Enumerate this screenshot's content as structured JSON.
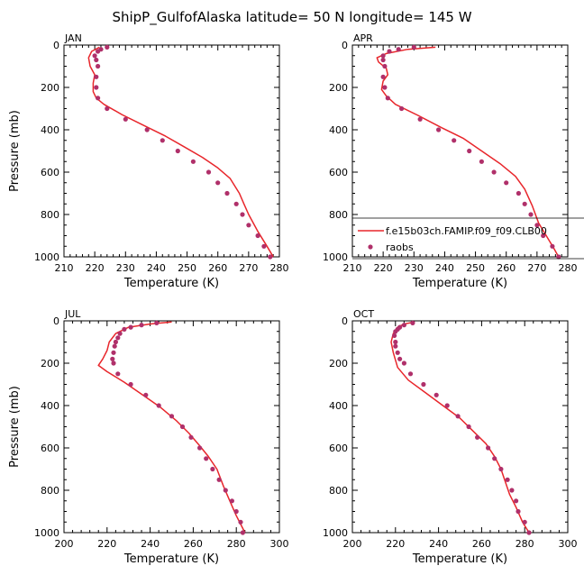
{
  "figure": {
    "title": "ShipP_GulfofAlaska  latitude= 50 N longitude= 145 W"
  },
  "legend": {
    "model_label": "f.e15b03ch.FAMIP.f09_f09.CLB00",
    "obs_label": "raobs",
    "placement": "inside APR panel, lower right"
  },
  "colors": {
    "model_line": "#e8262b",
    "obs_marker": "#b0306a"
  },
  "chart_data": [
    {
      "type": "line",
      "title": "JAN",
      "xlabel": "Temperature (K)",
      "ylabel": "Pressure (mb)",
      "xlim": [
        210,
        280
      ],
      "xticks": [
        "210",
        "220",
        "230",
        "240",
        "250",
        "260",
        "270",
        "280"
      ],
      "ylim": [
        1000,
        0
      ],
      "yticks": [
        "0",
        "200",
        "400",
        "600",
        "800",
        "1000"
      ],
      "grid": false,
      "series": [
        {
          "name": "f.e15b03ch.FAMIP.f09_f09.CLB00",
          "kind": "line",
          "points": [
            [
              221.5,
              10
            ],
            [
              219,
              30
            ],
            [
              218,
              60
            ],
            [
              218.5,
              100
            ],
            [
              220,
              140
            ],
            [
              219.5,
              180
            ],
            [
              219.5,
              220
            ],
            [
              220.5,
              250
            ],
            [
              223,
              280
            ],
            [
              229,
              330
            ],
            [
              236,
              380
            ],
            [
              243,
              430
            ],
            [
              249,
              480
            ],
            [
              255,
              530
            ],
            [
              260,
              580
            ],
            [
              264,
              630
            ],
            [
              267,
              700
            ],
            [
              268.5,
              750
            ],
            [
              270,
              800
            ],
            [
              273,
              880
            ],
            [
              276,
              950
            ],
            [
              278,
              1000
            ]
          ]
        },
        {
          "name": "raobs",
          "kind": "scatter",
          "points": [
            [
              224,
              10
            ],
            [
              222,
              20
            ],
            [
              221,
              30
            ],
            [
              220,
              50
            ],
            [
              220.5,
              70
            ],
            [
              221,
              100
            ],
            [
              220.5,
              150
            ],
            [
              220.5,
              200
            ],
            [
              221,
              250
            ],
            [
              224,
              300
            ],
            [
              230,
              350
            ],
            [
              237,
              400
            ],
            [
              242,
              450
            ],
            [
              247,
              500
            ],
            [
              252,
              550
            ],
            [
              257,
              600
            ],
            [
              260,
              650
            ],
            [
              263,
              700
            ],
            [
              266,
              750
            ],
            [
              268,
              800
            ],
            [
              270,
              850
            ],
            [
              273,
              900
            ],
            [
              275,
              950
            ],
            [
              277,
              1000
            ]
          ]
        }
      ]
    },
    {
      "type": "line",
      "title": "APR",
      "xlabel": "Temperature (K)",
      "ylabel": "Pressure (mb)",
      "xlim": [
        210,
        280
      ],
      "xticks": [
        "210",
        "220",
        "230",
        "240",
        "250",
        "260",
        "270",
        "280"
      ],
      "ylim": [
        1000,
        0
      ],
      "yticks": [
        "0",
        "200",
        "400",
        "600",
        "800",
        "1000"
      ],
      "grid": false,
      "series": [
        {
          "name": "f.e15b03ch.FAMIP.f09_f09.CLB00",
          "kind": "line",
          "points": [
            [
              237,
              10
            ],
            [
              228,
              20
            ],
            [
              221,
              40
            ],
            [
              218,
              60
            ],
            [
              218.5,
              80
            ],
            [
              221,
              110
            ],
            [
              221.5,
              140
            ],
            [
              220,
              170
            ],
            [
              219.5,
              210
            ],
            [
              221,
              240
            ],
            [
              224,
              280
            ],
            [
              231,
              330
            ],
            [
              239,
              390
            ],
            [
              246,
              440
            ],
            [
              252,
              500
            ],
            [
              258,
              560
            ],
            [
              263,
              620
            ],
            [
              266,
              680
            ],
            [
              268.5,
              760
            ],
            [
              270.5,
              840
            ],
            [
              273,
              900
            ],
            [
              275.5,
              960
            ],
            [
              277,
              1000
            ]
          ]
        },
        {
          "name": "raobs",
          "kind": "scatter",
          "points": [
            [
              230,
              10
            ],
            [
              225,
              20
            ],
            [
              222,
              30
            ],
            [
              220,
              50
            ],
            [
              220,
              70
            ],
            [
              220.5,
              100
            ],
            [
              220,
              150
            ],
            [
              220.5,
              200
            ],
            [
              221.5,
              250
            ],
            [
              226,
              300
            ],
            [
              232,
              350
            ],
            [
              238,
              400
            ],
            [
              243,
              450
            ],
            [
              248,
              500
            ],
            [
              252,
              550
            ],
            [
              256,
              600
            ],
            [
              260,
              650
            ],
            [
              264,
              700
            ],
            [
              266,
              750
            ],
            [
              268,
              800
            ],
            [
              270,
              850
            ],
            [
              272,
              900
            ],
            [
              275,
              950
            ],
            [
              277,
              1000
            ]
          ]
        }
      ]
    },
    {
      "type": "line",
      "title": "JUL",
      "xlabel": "Temperature (K)",
      "ylabel": "Pressure (mb)",
      "xlim": [
        200,
        300
      ],
      "xticks": [
        "200",
        "220",
        "240",
        "260",
        "280",
        "300"
      ],
      "ylim": [
        1000,
        0
      ],
      "yticks": [
        "0",
        "200",
        "400",
        "600",
        "800",
        "1000"
      ],
      "grid": false,
      "series": [
        {
          "name": "f.e15b03ch.FAMIP.f09_f09.CLB00",
          "kind": "line",
          "points": [
            [
              250,
              5
            ],
            [
              240,
              15
            ],
            [
              230,
              30
            ],
            [
              224,
              60
            ],
            [
              221,
              100
            ],
            [
              220,
              140
            ],
            [
              218,
              180
            ],
            [
              216,
              210
            ],
            [
              220,
              240
            ],
            [
              228,
              290
            ],
            [
              238,
              360
            ],
            [
              245,
              410
            ],
            [
              252,
              470
            ],
            [
              258,
              530
            ],
            [
              263,
              590
            ],
            [
              267,
              640
            ],
            [
              271,
              700
            ],
            [
              274,
              780
            ],
            [
              277,
              850
            ],
            [
              280,
              920
            ],
            [
              284,
              1000
            ]
          ]
        },
        {
          "name": "raobs",
          "kind": "scatter",
          "points": [
            [
              243,
              10
            ],
            [
              236,
              20
            ],
            [
              231,
              30
            ],
            [
              228,
              40
            ],
            [
              226,
              60
            ],
            [
              225,
              80
            ],
            [
              224,
              100
            ],
            [
              223.5,
              120
            ],
            [
              223,
              150
            ],
            [
              222.5,
              180
            ],
            [
              223,
              200
            ],
            [
              225,
              250
            ],
            [
              231,
              300
            ],
            [
              238,
              350
            ],
            [
              244,
              400
            ],
            [
              250,
              450
            ],
            [
              255,
              500
            ],
            [
              259,
              550
            ],
            [
              263,
              600
            ],
            [
              266,
              650
            ],
            [
              269,
              700
            ],
            [
              272,
              750
            ],
            [
              275,
              800
            ],
            [
              278,
              850
            ],
            [
              280,
              900
            ],
            [
              282,
              950
            ],
            [
              283,
              1000
            ]
          ]
        }
      ]
    },
    {
      "type": "line",
      "title": "OCT",
      "xlabel": "Temperature (K)",
      "ylabel": "Pressure (mb)",
      "xlim": [
        200,
        300
      ],
      "xticks": [
        "200",
        "220",
        "240",
        "260",
        "280",
        "300"
      ],
      "ylim": [
        1000,
        0
      ],
      "yticks": [
        "0",
        "200",
        "400",
        "600",
        "800",
        "1000"
      ],
      "grid": false,
      "series": [
        {
          "name": "f.e15b03ch.FAMIP.f09_f09.CLB00",
          "kind": "line",
          "points": [
            [
              229,
              5
            ],
            [
              224,
              15
            ],
            [
              221,
              30
            ],
            [
              219,
              60
            ],
            [
              218,
              100
            ],
            [
              219,
              150
            ],
            [
              221,
              220
            ],
            [
              226,
              280
            ],
            [
              234,
              340
            ],
            [
              242,
              400
            ],
            [
              250,
              460
            ],
            [
              256,
              520
            ],
            [
              262,
              580
            ],
            [
              266,
              640
            ],
            [
              269,
              700
            ],
            [
              271,
              760
            ],
            [
              273,
              820
            ],
            [
              276,
              880
            ],
            [
              279,
              950
            ],
            [
              282,
              1000
            ]
          ]
        },
        {
          "name": "raobs",
          "kind": "scatter",
          "points": [
            [
              228,
              10
            ],
            [
              224,
              20
            ],
            [
              222,
              30
            ],
            [
              221,
              40
            ],
            [
              220,
              50
            ],
            [
              219.5,
              70
            ],
            [
              220,
              100
            ],
            [
              220,
              120
            ],
            [
              221,
              150
            ],
            [
              222,
              180
            ],
            [
              224,
              200
            ],
            [
              227,
              250
            ],
            [
              233,
              300
            ],
            [
              239,
              350
            ],
            [
              244,
              400
            ],
            [
              249,
              450
            ],
            [
              254,
              500
            ],
            [
              258,
              550
            ],
            [
              263,
              600
            ],
            [
              266,
              650
            ],
            [
              269,
              700
            ],
            [
              272,
              750
            ],
            [
              274,
              800
            ],
            [
              276,
              850
            ],
            [
              277,
              900
            ],
            [
              280,
              950
            ],
            [
              282,
              1000
            ]
          ]
        }
      ]
    }
  ]
}
